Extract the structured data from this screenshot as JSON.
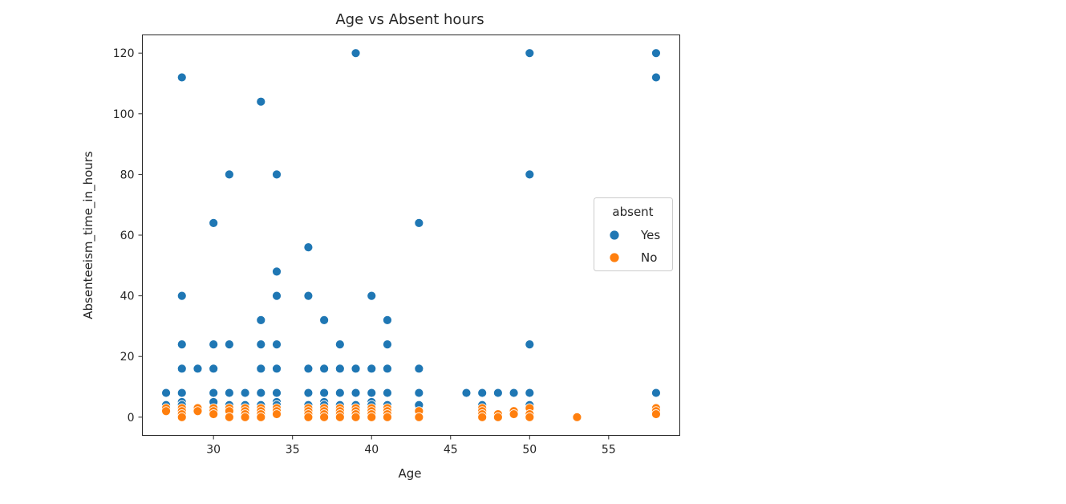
{
  "chart_data": {
    "type": "scatter",
    "title": "Age vs Absent hours",
    "xlabel": "Age",
    "ylabel": "Absenteeism_time_in_hours",
    "xlim": [
      25.5,
      59.5
    ],
    "ylim": [
      -6,
      126
    ],
    "xticks": [
      30,
      35,
      40,
      45,
      50,
      55
    ],
    "yticks": [
      0,
      20,
      40,
      60,
      80,
      100,
      120
    ],
    "grid": false,
    "legend": {
      "title": "absent",
      "placement": "center-right"
    },
    "series": [
      {
        "name": "Yes",
        "color": "#1f77b4",
        "points": [
          [
            27,
            8
          ],
          [
            27,
            4
          ],
          [
            28,
            112
          ],
          [
            28,
            40
          ],
          [
            28,
            24
          ],
          [
            28,
            16
          ],
          [
            28,
            8
          ],
          [
            28,
            5
          ],
          [
            28,
            4
          ],
          [
            29,
            16
          ],
          [
            30,
            64
          ],
          [
            30,
            24
          ],
          [
            30,
            16
          ],
          [
            30,
            8
          ],
          [
            30,
            5
          ],
          [
            31,
            80
          ],
          [
            31,
            24
          ],
          [
            31,
            8
          ],
          [
            31,
            4
          ],
          [
            32,
            8
          ],
          [
            32,
            4
          ],
          [
            33,
            104
          ],
          [
            33,
            32
          ],
          [
            33,
            24
          ],
          [
            33,
            16
          ],
          [
            33,
            8
          ],
          [
            33,
            4
          ],
          [
            34,
            80
          ],
          [
            34,
            48
          ],
          [
            34,
            40
          ],
          [
            34,
            24
          ],
          [
            34,
            16
          ],
          [
            34,
            8
          ],
          [
            34,
            5
          ],
          [
            34,
            4
          ],
          [
            36,
            56
          ],
          [
            36,
            40
          ],
          [
            36,
            16
          ],
          [
            36,
            8
          ],
          [
            36,
            4
          ],
          [
            37,
            32
          ],
          [
            37,
            16
          ],
          [
            37,
            8
          ],
          [
            37,
            5
          ],
          [
            37,
            4
          ],
          [
            38,
            24
          ],
          [
            38,
            16
          ],
          [
            38,
            8
          ],
          [
            38,
            4
          ],
          [
            39,
            120
          ],
          [
            39,
            16
          ],
          [
            39,
            8
          ],
          [
            39,
            4
          ],
          [
            40,
            40
          ],
          [
            40,
            16
          ],
          [
            40,
            8
          ],
          [
            40,
            5
          ],
          [
            40,
            4
          ],
          [
            41,
            32
          ],
          [
            41,
            24
          ],
          [
            41,
            16
          ],
          [
            41,
            8
          ],
          [
            41,
            4
          ],
          [
            43,
            64
          ],
          [
            43,
            16
          ],
          [
            43,
            8
          ],
          [
            43,
            4
          ],
          [
            46,
            8
          ],
          [
            47,
            8
          ],
          [
            47,
            4
          ],
          [
            48,
            8
          ],
          [
            49,
            8
          ],
          [
            50,
            120
          ],
          [
            50,
            80
          ],
          [
            50,
            24
          ],
          [
            50,
            8
          ],
          [
            50,
            4
          ],
          [
            58,
            120
          ],
          [
            58,
            112
          ],
          [
            58,
            8
          ]
        ]
      },
      {
        "name": "No",
        "color": "#ff7f0e",
        "points": [
          [
            27,
            3
          ],
          [
            27,
            2
          ],
          [
            28,
            3
          ],
          [
            28,
            2
          ],
          [
            28,
            1
          ],
          [
            28,
            0
          ],
          [
            29,
            3
          ],
          [
            29,
            2
          ],
          [
            30,
            3
          ],
          [
            30,
            2
          ],
          [
            30,
            1
          ],
          [
            31,
            3
          ],
          [
            31,
            2
          ],
          [
            31,
            0
          ],
          [
            32,
            3
          ],
          [
            32,
            2
          ],
          [
            32,
            1
          ],
          [
            32,
            0
          ],
          [
            33,
            3
          ],
          [
            33,
            2
          ],
          [
            33,
            1
          ],
          [
            33,
            0
          ],
          [
            34,
            3
          ],
          [
            34,
            2
          ],
          [
            34,
            1
          ],
          [
            36,
            3
          ],
          [
            36,
            2
          ],
          [
            36,
            1
          ],
          [
            36,
            0
          ],
          [
            37,
            3
          ],
          [
            37,
            2
          ],
          [
            37,
            1
          ],
          [
            37,
            0
          ],
          [
            38,
            3
          ],
          [
            38,
            2
          ],
          [
            38,
            1
          ],
          [
            38,
            0
          ],
          [
            39,
            3
          ],
          [
            39,
            2
          ],
          [
            39,
            1
          ],
          [
            39,
            0
          ],
          [
            40,
            3
          ],
          [
            40,
            2
          ],
          [
            40,
            1
          ],
          [
            40,
            0
          ],
          [
            41,
            3
          ],
          [
            41,
            2
          ],
          [
            41,
            1
          ],
          [
            41,
            0
          ],
          [
            43,
            2
          ],
          [
            43,
            0
          ],
          [
            47,
            3
          ],
          [
            47,
            2
          ],
          [
            47,
            1
          ],
          [
            47,
            0
          ],
          [
            48,
            1
          ],
          [
            48,
            0
          ],
          [
            49,
            2
          ],
          [
            49,
            1
          ],
          [
            50,
            3
          ],
          [
            50,
            1
          ],
          [
            50,
            0
          ],
          [
            53,
            0
          ],
          [
            58,
            3
          ],
          [
            58,
            2
          ],
          [
            58,
            1
          ]
        ]
      }
    ]
  }
}
